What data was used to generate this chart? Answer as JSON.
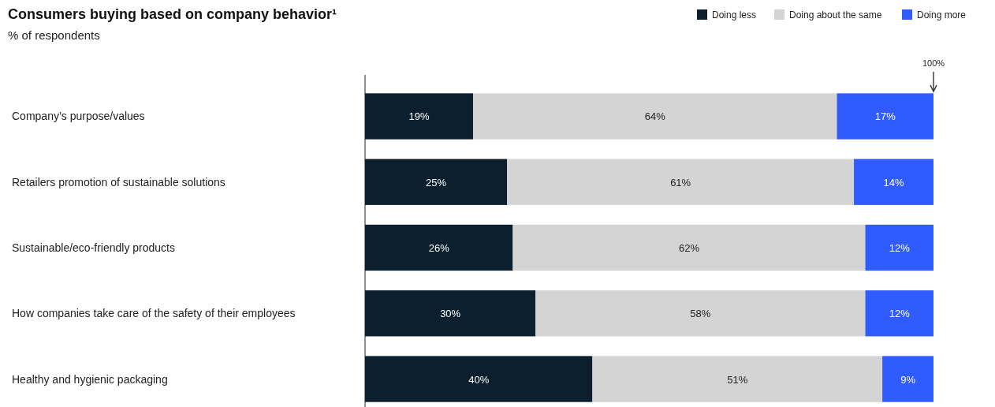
{
  "chart_data": {
    "type": "bar",
    "orientation": "horizontal",
    "stacked": true,
    "title": "Consumers buying based on company behavior¹",
    "subtitle": "% of respondents",
    "categories": [
      "Company’s purpose/values",
      "Retailers promotion of sustainable solutions",
      "Sustainable/eco-friendly products",
      "How companies take care of the safety of their employees",
      "Healthy and hygienic packaging"
    ],
    "series": [
      {
        "name": "Doing less",
        "color": "#0b1f2e",
        "values": [
          19,
          25,
          26,
          30,
          40
        ],
        "value_labels": [
          "19%",
          "25%",
          "26%",
          "30%",
          "40%"
        ]
      },
      {
        "name": "Doing about the same",
        "color": "#d4d4d4",
        "values": [
          64,
          61,
          62,
          58,
          51
        ],
        "value_labels": [
          "64%",
          "61%",
          "62%",
          "58%",
          "51%"
        ]
      },
      {
        "name": "Doing more",
        "color": "#2f5bff",
        "values": [
          17,
          14,
          12,
          12,
          9
        ],
        "value_labels": [
          "17%",
          "14%",
          "12%",
          "12%",
          "9%"
        ]
      }
    ],
    "xlim": [
      0,
      100
    ],
    "tick_labels": "y",
    "legend": "top right",
    "annotations": [
      {
        "text": "100%",
        "x": 100
      }
    ]
  }
}
